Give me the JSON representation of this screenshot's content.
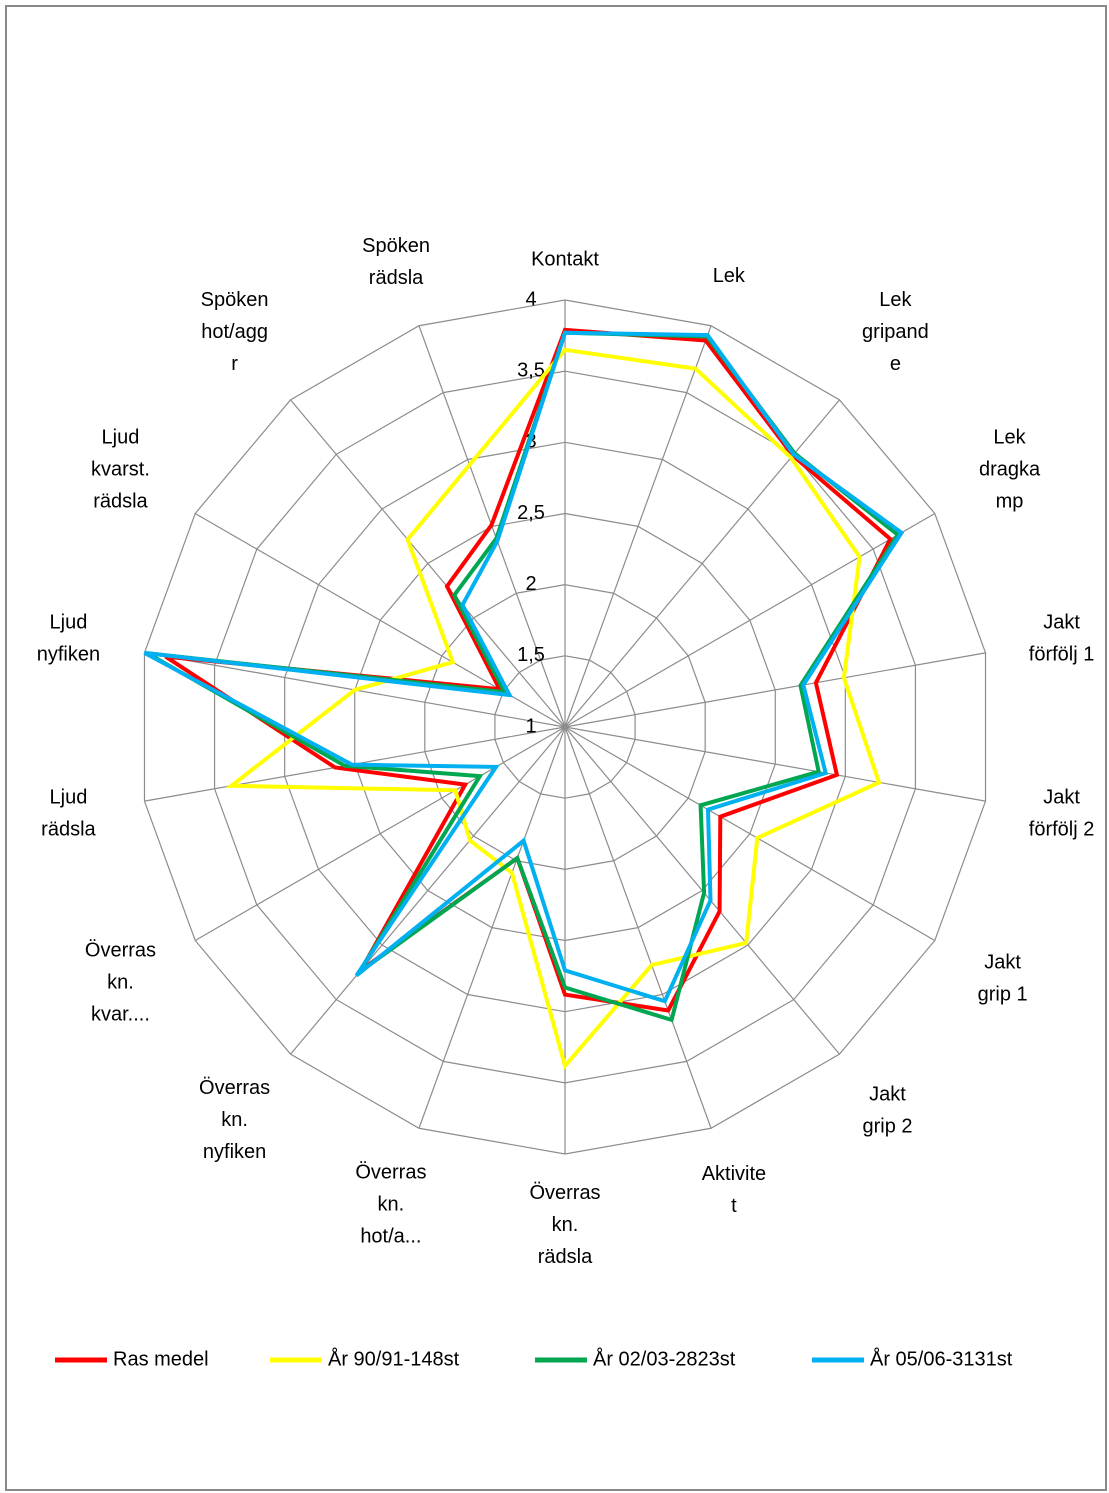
{
  "chart_data": {
    "type": "radar",
    "categories": [
      "Kontakt",
      "Lek",
      "Lek\ngripand\ne",
      "Lek\ndragka\nmp",
      "Jakt\nförfölj 1",
      "Jakt\nförfölj 2",
      "Jakt\ngrip 1",
      "Jakt\ngrip 2",
      "Aktivite\nt",
      "Överras\nkn.\nrädsla",
      "Överras\nkn.\nhot/a...",
      "Överras\nkn.\nnyfiken",
      "Överras\nkn.\nkvar....",
      "Ljud\nrädsla",
      "Ljud\nnyfiken",
      "Ljud\nkvarst.\nrädsla",
      "Spöken\nhot/agg\nr",
      "Spöken\nrädsla"
    ],
    "series": [
      {
        "name": "Ras medel",
        "color": "#ff0000",
        "values": [
          3.79,
          3.89,
          3.49,
          3.64,
          2.79,
          2.94,
          2.26,
          2.69,
          3.12,
          2.88,
          1.98,
          3.23,
          1.81,
          2.64,
          3.85,
          1.53,
          2.29,
          2.51
        ]
      },
      {
        "name": "År 90/91-148st",
        "color": "#ffff00",
        "values": [
          3.65,
          3.68,
          3.47,
          3.39,
          2.99,
          3.24,
          2.56,
          2.98,
          2.78,
          3.38,
          2.09,
          2.04,
          1.89,
          3.38,
          2.5,
          1.91,
          2.72,
          2.96
        ]
      },
      {
        "name": "År 02/03-2823st",
        "color": "#00a650",
        "values": [
          3.77,
          3.92,
          3.51,
          3.7,
          2.68,
          2.81,
          2.1,
          2.52,
          3.19,
          2.83,
          1.98,
          3.25,
          1.69,
          2.57,
          3.98,
          1.49,
          2.21,
          2.41
        ]
      },
      {
        "name": "År 05/06-3131st",
        "color": "#00b0f0",
        "values": [
          3.77,
          3.93,
          3.5,
          3.73,
          2.7,
          2.86,
          2.16,
          2.59,
          3.05,
          2.71,
          1.85,
          3.28,
          1.56,
          2.52,
          4.0,
          1.45,
          2.12,
          2.39
        ]
      }
    ],
    "ylim": [
      1,
      4
    ],
    "yticks": [
      1,
      {
        "value": 1.5,
        "label": "1,5"
      },
      2,
      {
        "value": 2.5,
        "label": "2,5"
      },
      3,
      {
        "value": 3.5,
        "label": "3,5"
      },
      4
    ],
    "grid": true,
    "legend": "bottom"
  }
}
